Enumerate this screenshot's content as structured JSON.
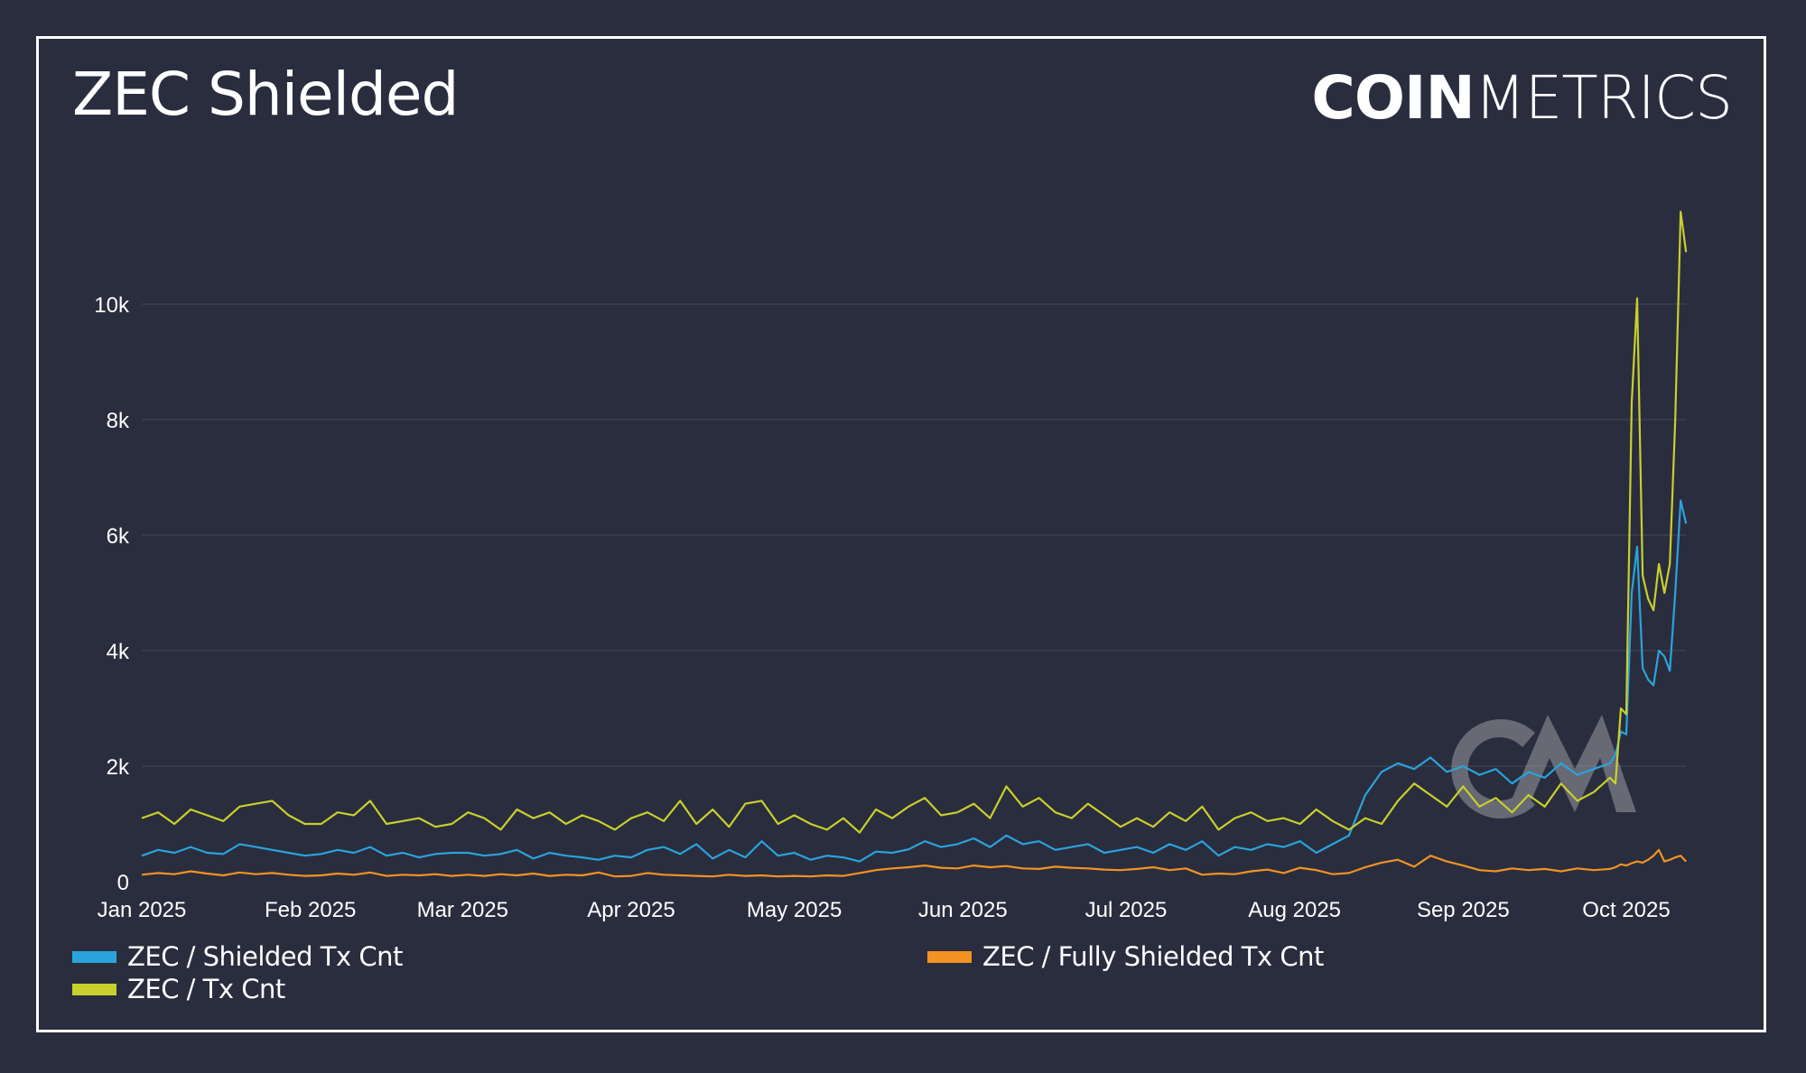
{
  "title": "ZEC Shielded",
  "logo": {
    "bold": "COIN",
    "light": "METRICS"
  },
  "chart_data": {
    "type": "line",
    "title": "ZEC Shielded",
    "xlabel": "",
    "ylabel": "",
    "x_unit": "days since Jan 1 2025",
    "x_days": [
      0,
      3,
      6,
      9,
      12,
      15,
      18,
      21,
      24,
      27,
      30,
      33,
      36,
      39,
      42,
      45,
      48,
      51,
      54,
      57,
      60,
      63,
      66,
      69,
      72,
      75,
      78,
      81,
      84,
      87,
      90,
      93,
      96,
      99,
      102,
      105,
      108,
      111,
      114,
      117,
      120,
      123,
      126,
      129,
      132,
      135,
      138,
      141,
      144,
      147,
      150,
      153,
      156,
      159,
      162,
      165,
      168,
      171,
      174,
      177,
      180,
      183,
      186,
      189,
      192,
      195,
      198,
      201,
      204,
      207,
      210,
      213,
      216,
      219,
      222,
      225,
      228,
      231,
      234,
      237,
      240,
      243,
      246,
      249,
      252,
      255,
      258,
      261,
      264,
      267,
      270,
      271,
      272,
      273,
      274,
      275,
      276,
      277,
      278,
      279,
      280,
      281,
      282,
      283,
      284
    ],
    "xlim": [
      0,
      284
    ],
    "ylim": [
      0,
      12000
    ],
    "x_ticks": [
      {
        "day": 0,
        "label": "Jan 2025"
      },
      {
        "day": 31,
        "label": "Feb 2025"
      },
      {
        "day": 59,
        "label": "Mar 2025"
      },
      {
        "day": 90,
        "label": "Apr 2025"
      },
      {
        "day": 120,
        "label": "May 2025"
      },
      {
        "day": 151,
        "label": "Jun 2025"
      },
      {
        "day": 181,
        "label": "Jul 2025"
      },
      {
        "day": 212,
        "label": "Aug 2025"
      },
      {
        "day": 243,
        "label": "Sep 2025"
      },
      {
        "day": 273,
        "label": "Oct 2025"
      }
    ],
    "y_ticks": [
      {
        "value": 0,
        "label": "0"
      },
      {
        "value": 2000,
        "label": "2k"
      },
      {
        "value": 4000,
        "label": "4k"
      },
      {
        "value": 6000,
        "label": "6k"
      },
      {
        "value": 8000,
        "label": "8k"
      },
      {
        "value": 10000,
        "label": "10k"
      }
    ],
    "grid": true,
    "legend_position": "bottom",
    "series": [
      {
        "name": "ZEC / Shielded Tx Cnt",
        "color": "#2aa3dc",
        "values": [
          450,
          550,
          500,
          600,
          500,
          480,
          650,
          600,
          550,
          500,
          450,
          480,
          550,
          500,
          600,
          450,
          500,
          420,
          480,
          500,
          500,
          450,
          480,
          550,
          400,
          500,
          450,
          420,
          380,
          450,
          420,
          550,
          600,
          480,
          650,
          400,
          550,
          420,
          700,
          450,
          500,
          380,
          450,
          420,
          350,
          520,
          500,
          560,
          700,
          600,
          650,
          750,
          600,
          800,
          650,
          700,
          550,
          600,
          650,
          500,
          550,
          600,
          500,
          650,
          550,
          700,
          450,
          600,
          550,
          650,
          600,
          700,
          500,
          650,
          800,
          1500,
          1900,
          2050,
          1950,
          2150,
          1900,
          2000,
          1850,
          1950,
          1700,
          1900,
          1800,
          2050,
          1850,
          1950,
          2050,
          2200,
          2600,
          2550,
          5000,
          5800,
          3700,
          3500,
          3400,
          4000,
          3900,
          3650,
          5000,
          6600,
          6200
        ]
      },
      {
        "name": "ZEC / Fully Shielded Tx Cnt",
        "color": "#f39223",
        "values": [
          120,
          150,
          130,
          180,
          140,
          110,
          160,
          130,
          150,
          120,
          100,
          110,
          140,
          120,
          160,
          100,
          120,
          110,
          130,
          100,
          120,
          100,
          130,
          110,
          140,
          100,
          120,
          110,
          160,
          90,
          100,
          150,
          120,
          110,
          100,
          90,
          120,
          100,
          110,
          90,
          100,
          90,
          110,
          100,
          150,
          200,
          230,
          250,
          280,
          240,
          230,
          280,
          250,
          270,
          230,
          220,
          260,
          240,
          230,
          210,
          200,
          220,
          250,
          200,
          230,
          120,
          140,
          130,
          180,
          210,
          150,
          240,
          200,
          130,
          150,
          250,
          330,
          380,
          260,
          450,
          350,
          280,
          200,
          180,
          230,
          200,
          220,
          180,
          230,
          200,
          220,
          250,
          300,
          280,
          320,
          350,
          330,
          380,
          450,
          550,
          350,
          380,
          420,
          450,
          350
        ]
      },
      {
        "name": "ZEC / Tx Cnt",
        "color": "#c9cf2c",
        "values": [
          1100,
          1200,
          1000,
          1250,
          1150,
          1050,
          1300,
          1350,
          1400,
          1150,
          1000,
          1000,
          1200,
          1150,
          1400,
          1000,
          1050,
          1100,
          950,
          1000,
          1200,
          1100,
          900,
          1250,
          1100,
          1200,
          1000,
          1150,
          1050,
          900,
          1100,
          1200,
          1050,
          1400,
          1000,
          1250,
          950,
          1350,
          1400,
          1000,
          1150,
          1000,
          900,
          1100,
          850,
          1250,
          1100,
          1300,
          1450,
          1150,
          1200,
          1350,
          1100,
          1650,
          1300,
          1450,
          1200,
          1100,
          1350,
          1150,
          950,
          1100,
          950,
          1200,
          1050,
          1300,
          900,
          1100,
          1200,
          1050,
          1100,
          1000,
          1250,
          1050,
          900,
          1100,
          1000,
          1400,
          1700,
          1500,
          1300,
          1650,
          1300,
          1450,
          1200,
          1500,
          1300,
          1700,
          1400,
          1550,
          1800,
          1700,
          3000,
          2900,
          8300,
          10100,
          5300,
          4900,
          4700,
          5500,
          5000,
          5500,
          8000,
          11600,
          10900
        ]
      }
    ]
  },
  "legend": [
    {
      "label": "ZEC / Shielded Tx Cnt",
      "color": "#2aa3dc"
    },
    {
      "label": "ZEC / Tx Cnt",
      "color": "#c9cf2c"
    },
    {
      "label": "ZEC / Fully Shielded Tx Cnt",
      "color": "#f39223"
    }
  ]
}
